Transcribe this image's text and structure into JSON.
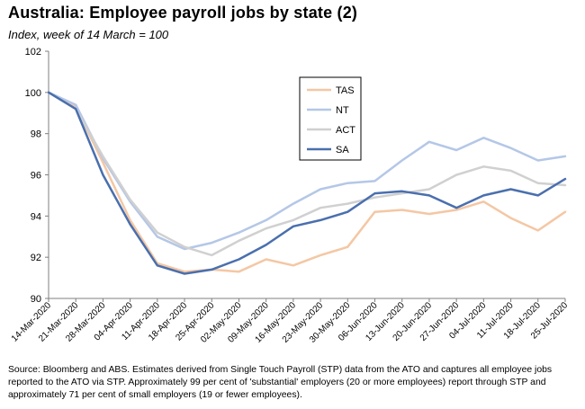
{
  "title": "Australia:  Employee payroll jobs by state (2)",
  "subtitle": "Index, week of 14 March = 100",
  "source": "Source: Bloomberg and ABS.  Estimates derived from Single Touch Payroll (STP) data from the ATO and captures all employee jobs reported to the ATO via STP.  Approximately 99 per cent of 'substantial' employers (20 or more employees) report through STP and approximately 71 per cent of small employers (19 or fewer employees).",
  "chart_data": {
    "type": "line",
    "title": "Australia:  Employee payroll jobs by state (2)",
    "subtitle": "Index, week of 14 March = 100",
    "xlabel": "",
    "ylabel": "",
    "ylim": [
      90,
      102
    ],
    "yticks": [
      "90",
      "92",
      "94",
      "96",
      "98",
      "100",
      "102"
    ],
    "grid": false,
    "legend_position": "top-center",
    "x": [
      "14-Mar-2020",
      "21-Mar-2020",
      "28-Mar-2020",
      "04-Apr-2020",
      "11-Apr-2020",
      "18-Apr-2020",
      "25-Apr-2020",
      "02-May-2020",
      "09-May-2020",
      "16-May-2020",
      "23-May-2020",
      "30-May-2020",
      "06-Jun-2020",
      "13-Jun-2020",
      "20-Jun-2020",
      "27-Jun-2020",
      "04-Jul-2020",
      "11-Jul-2020",
      "18-Jul-2020",
      "25-Jul-2020"
    ],
    "series": [
      {
        "name": "TAS",
        "color": "#f4c7a4",
        "values": [
          100,
          99.3,
          96.6,
          93.8,
          91.7,
          91.3,
          91.4,
          91.3,
          91.9,
          91.6,
          92.1,
          92.5,
          94.2,
          94.3,
          94.1,
          94.3,
          94.7,
          93.9,
          93.3,
          94.2
        ]
      },
      {
        "name": "NT",
        "color": "#b4c7e7",
        "values": [
          100,
          99.4,
          96.8,
          94.7,
          93.0,
          92.4,
          92.7,
          93.2,
          93.8,
          94.6,
          95.3,
          95.6,
          95.7,
          96.7,
          97.6,
          97.2,
          97.8,
          97.3,
          96.7,
          96.9
        ]
      },
      {
        "name": "ACT",
        "color": "#d0d0d0",
        "values": [
          100,
          99.2,
          96.9,
          94.8,
          93.2,
          92.5,
          92.1,
          92.8,
          93.4,
          93.8,
          94.4,
          94.6,
          94.9,
          95.1,
          95.3,
          96.0,
          96.4,
          96.2,
          95.6,
          95.5
        ]
      },
      {
        "name": "SA",
        "color": "#4a6fae",
        "values": [
          100,
          99.2,
          96.0,
          93.6,
          91.6,
          91.2,
          91.4,
          91.9,
          92.6,
          93.5,
          93.8,
          94.2,
          95.1,
          95.2,
          95.0,
          94.4,
          95.0,
          95.3,
          95.0,
          95.8
        ]
      }
    ]
  }
}
